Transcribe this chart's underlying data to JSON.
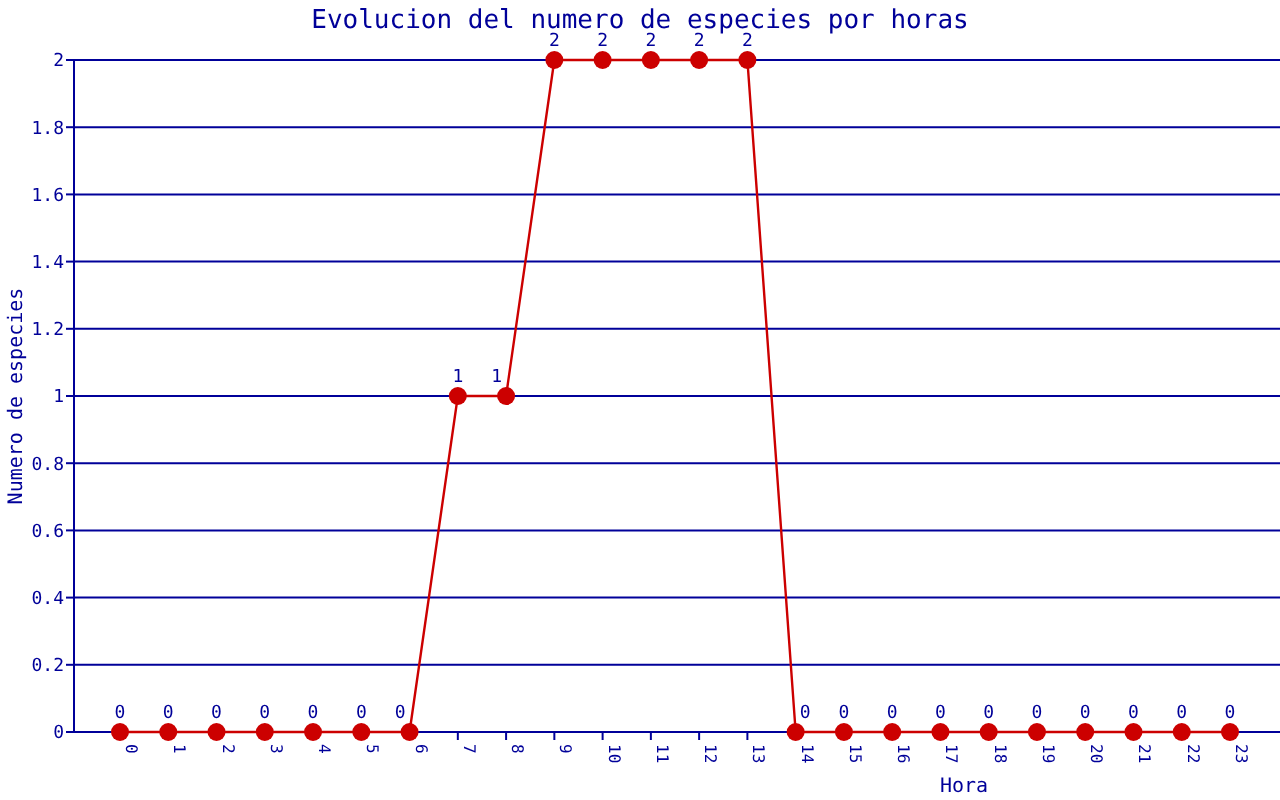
{
  "chart_data": {
    "type": "line",
    "title": "Evolucion del numero de especies por horas",
    "xlabel": "Hora",
    "ylabel": "Numero de especies",
    "categories": [
      "0",
      "1",
      "2",
      "3",
      "4",
      "5",
      "6",
      "7",
      "8",
      "9",
      "10",
      "11",
      "12",
      "13",
      "14",
      "15",
      "16",
      "17",
      "18",
      "19",
      "20",
      "21",
      "22",
      "23"
    ],
    "series": [
      {
        "color": "#cc0000",
        "values": [
          0,
          0,
          0,
          0,
          0,
          0,
          0,
          1,
          1,
          2,
          2,
          2,
          2,
          2,
          0,
          0,
          0,
          0,
          0,
          0,
          0,
          0,
          0,
          0
        ]
      }
    ],
    "ylim": [
      0,
      2
    ],
    "yticks": [
      0,
      0.2,
      0.4,
      0.6,
      0.8,
      1,
      1.2,
      1.4,
      1.6,
      1.8,
      2
    ],
    "grid": "y",
    "marker": "circle",
    "line_style": "solid",
    "data_labels": true
  }
}
